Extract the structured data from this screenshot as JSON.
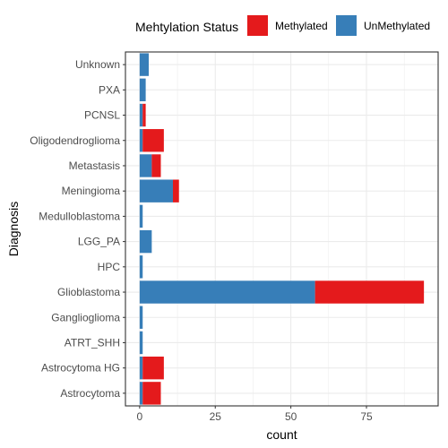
{
  "chart_data": {
    "type": "bar",
    "orientation": "horizontal",
    "stacked": true,
    "categories": [
      "Astrocytoma",
      "Astrocytoma HG",
      "ATRT_SHH",
      "Ganglioglioma",
      "Glioblastoma",
      "HPC",
      "LGG_PA",
      "Medulloblastoma",
      "Meningioma",
      "Metastasis",
      "Oligodendroglioma",
      "PCNSL",
      "PXA",
      "Unknown"
    ],
    "series": [
      {
        "name": "UnMethylated",
        "color": "#377EB8",
        "values": [
          1,
          1,
          1,
          1,
          58,
          1,
          4,
          1,
          11,
          4,
          1,
          1,
          2,
          3
        ]
      },
      {
        "name": "Methylated",
        "color": "#E41A1C",
        "values": [
          6,
          7,
          0,
          0,
          36,
          0,
          0,
          0,
          2,
          3,
          7,
          1,
          0,
          0
        ]
      }
    ],
    "xlabel": "count",
    "ylabel": "Diagnosis",
    "xticks": [
      0,
      25,
      50,
      75
    ],
    "xlim": [
      -4.7,
      98.7
    ],
    "legend": {
      "title": "Mehtylation Status",
      "position": "top",
      "entries": [
        {
          "label": "Methylated",
          "color": "#E41A1C"
        },
        {
          "label": "UnMethylated",
          "color": "#377EB8"
        }
      ]
    },
    "grid": true,
    "colors": {
      "panel_background": "#ffffff",
      "grid": "#ebebeb",
      "border": "#333333"
    }
  }
}
